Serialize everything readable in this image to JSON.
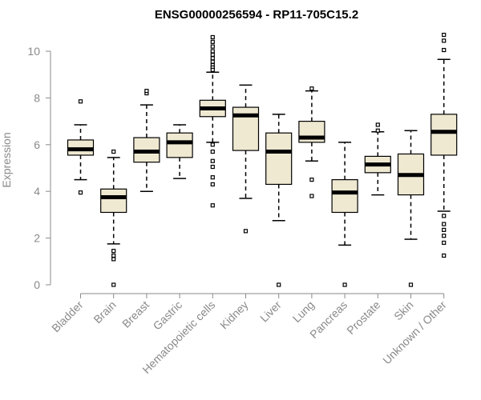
{
  "chart_data": {
    "type": "boxplot",
    "title": "ENSG00000256594 - RP11-705C15.2",
    "ylabel": "Expression",
    "xlabel": "",
    "ylim": [
      0,
      10.5
    ],
    "yticks": [
      0,
      2,
      4,
      6,
      8,
      10
    ],
    "colors": {
      "box_fill": "#efe9d2",
      "stroke": "#000000",
      "axis": "#8a8a8a"
    },
    "categories": [
      "Bladder",
      "Brain",
      "Breast",
      "Gastric",
      "Hematopoietic cells",
      "Kidney",
      "Liver",
      "Lung",
      "Pancreas",
      "Prostate",
      "Skin",
      "Unknown / Other"
    ],
    "boxes": [
      {
        "q1": 5.55,
        "median": 5.8,
        "q3": 6.2,
        "whisker_low": 4.5,
        "whisker_high": 6.85,
        "outliers": [
          7.85,
          3.95
        ]
      },
      {
        "q1": 3.1,
        "median": 3.75,
        "q3": 4.1,
        "whisker_low": 1.75,
        "whisker_high": 5.45,
        "outliers": [
          5.7,
          1.45,
          1.25,
          1.1,
          0.0
        ]
      },
      {
        "q1": 5.25,
        "median": 5.7,
        "q3": 6.3,
        "whisker_low": 4.0,
        "whisker_high": 7.7,
        "outliers": [
          8.2,
          8.3
        ]
      },
      {
        "q1": 5.45,
        "median": 6.1,
        "q3": 6.5,
        "whisker_low": 4.55,
        "whisker_high": 6.85,
        "outliers": []
      },
      {
        "q1": 7.2,
        "median": 7.55,
        "q3": 7.9,
        "whisker_low": 6.1,
        "whisker_high": 9.1,
        "outliers": [
          10.6,
          10.4,
          10.2,
          10.0,
          9.85,
          9.7,
          9.55,
          9.4,
          9.3,
          9.2,
          6.0,
          5.7,
          5.3,
          5.05,
          4.6,
          4.3,
          3.4
        ]
      },
      {
        "q1": 5.75,
        "median": 7.25,
        "q3": 7.6,
        "whisker_low": 3.7,
        "whisker_high": 8.55,
        "outliers": [
          2.3
        ]
      },
      {
        "q1": 4.3,
        "median": 5.7,
        "q3": 6.5,
        "whisker_low": 2.75,
        "whisker_high": 7.3,
        "outliers": [
          0.0
        ]
      },
      {
        "q1": 6.1,
        "median": 6.3,
        "q3": 7.0,
        "whisker_low": 5.3,
        "whisker_high": 8.3,
        "outliers": [
          8.4,
          4.5,
          3.8
        ]
      },
      {
        "q1": 3.1,
        "median": 3.95,
        "q3": 4.5,
        "whisker_low": 1.7,
        "whisker_high": 6.1,
        "outliers": [
          0.0
        ]
      },
      {
        "q1": 4.8,
        "median": 5.15,
        "q3": 5.5,
        "whisker_low": 3.85,
        "whisker_high": 6.55,
        "outliers": [
          6.85,
          6.6
        ]
      },
      {
        "q1": 3.85,
        "median": 4.7,
        "q3": 5.6,
        "whisker_low": 1.95,
        "whisker_high": 6.6,
        "outliers": [
          0.0
        ]
      },
      {
        "q1": 5.55,
        "median": 6.55,
        "q3": 7.3,
        "whisker_low": 3.15,
        "whisker_high": 9.65,
        "outliers": [
          10.7,
          10.45,
          10.05,
          2.95,
          2.6,
          2.35,
          2.1,
          1.8,
          1.25
        ]
      }
    ]
  }
}
